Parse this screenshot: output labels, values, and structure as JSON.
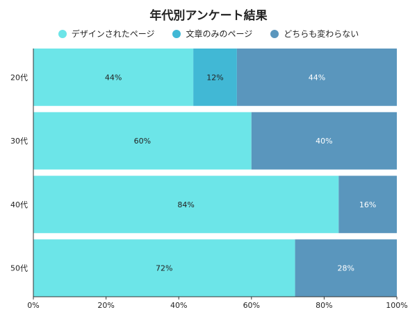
{
  "chart_data": {
    "type": "bar",
    "orientation": "horizontal",
    "stacked": true,
    "title": "年代別アンケート結果",
    "categories": [
      "20代",
      "30代",
      "40代",
      "50代"
    ],
    "series": [
      {
        "name": "デザインされたページ",
        "color": "#6ce5e8",
        "label_color": "#222222",
        "values": [
          44,
          60,
          84,
          72
        ],
        "labels": [
          "44%",
          "60%",
          "84%",
          "72%"
        ]
      },
      {
        "name": "文章のみのページ",
        "color": "#41b8d5",
        "label_color": "#222222",
        "values": [
          12,
          0,
          0,
          0
        ],
        "labels": [
          "12%",
          "",
          "",
          ""
        ]
      },
      {
        "name": "どちらも変わらない",
        "color": "#5a96bd",
        "label_color": "#ffffff",
        "values": [
          44,
          40,
          16,
          28
        ],
        "labels": [
          "44%",
          "40%",
          "16%",
          "28%"
        ]
      }
    ],
    "xlim": [
      0,
      100
    ],
    "x_ticks": [
      0,
      20,
      40,
      60,
      80,
      100
    ],
    "x_tick_labels": [
      "0%",
      "20%",
      "40%",
      "60%",
      "80%",
      "100%"
    ],
    "legend_position": "top-center",
    "grid": false
  }
}
